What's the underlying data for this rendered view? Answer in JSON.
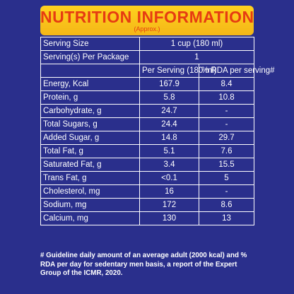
{
  "header": {
    "title": "NUTRITION INFORMATION",
    "subtitle": "(Approx.)"
  },
  "serving": {
    "size_label": "Serving Size",
    "size_value": "1 cup (180 ml)",
    "per_package_label": "Serving(s) Per Package",
    "per_package_value": "1"
  },
  "columns": {
    "per_serving": "Per Serving (180 ml)",
    "rda": "% RDA per serving#"
  },
  "rows": [
    {
      "label": "Energy, Kcal",
      "per_serving": "167.9",
      "rda": "8.4"
    },
    {
      "label": "Protein, g",
      "per_serving": "5.8",
      "rda": "10.8"
    },
    {
      "label": "Carbohydrate, g",
      "per_serving": "24.7",
      "rda": "-"
    },
    {
      "label": "Total Sugars, g",
      "per_serving": "24.4",
      "rda": "-"
    },
    {
      "label": "Added Sugar, g",
      "per_serving": "14.8",
      "rda": "29.7"
    },
    {
      "label": "Total Fat, g",
      "per_serving": "5.1",
      "rda": "7.6"
    },
    {
      "label": "Saturated Fat, g",
      "per_serving": "3.4",
      "rda": "15.5"
    },
    {
      "label": "Trans Fat, g",
      "per_serving": "<0.1",
      "rda": "5"
    },
    {
      "label": "Cholesterol, mg",
      "per_serving": "16",
      "rda": "-"
    },
    {
      "label": "Sodium, mg",
      "per_serving": "172",
      "rda": "8.6"
    },
    {
      "label": "Calcium, mg",
      "per_serving": "130",
      "rda": "13"
    }
  ],
  "footnote": "# Guideline daily amount of an average adult (2000 kcal) and % RDA per day for sedentary men basis, a report of the Expert Group of the ICMR, 2020.",
  "colors": {
    "background": "#2a2f8c",
    "header_bg": "#ffd21e",
    "header_text": "#e63c12",
    "text": "#ffffff"
  }
}
